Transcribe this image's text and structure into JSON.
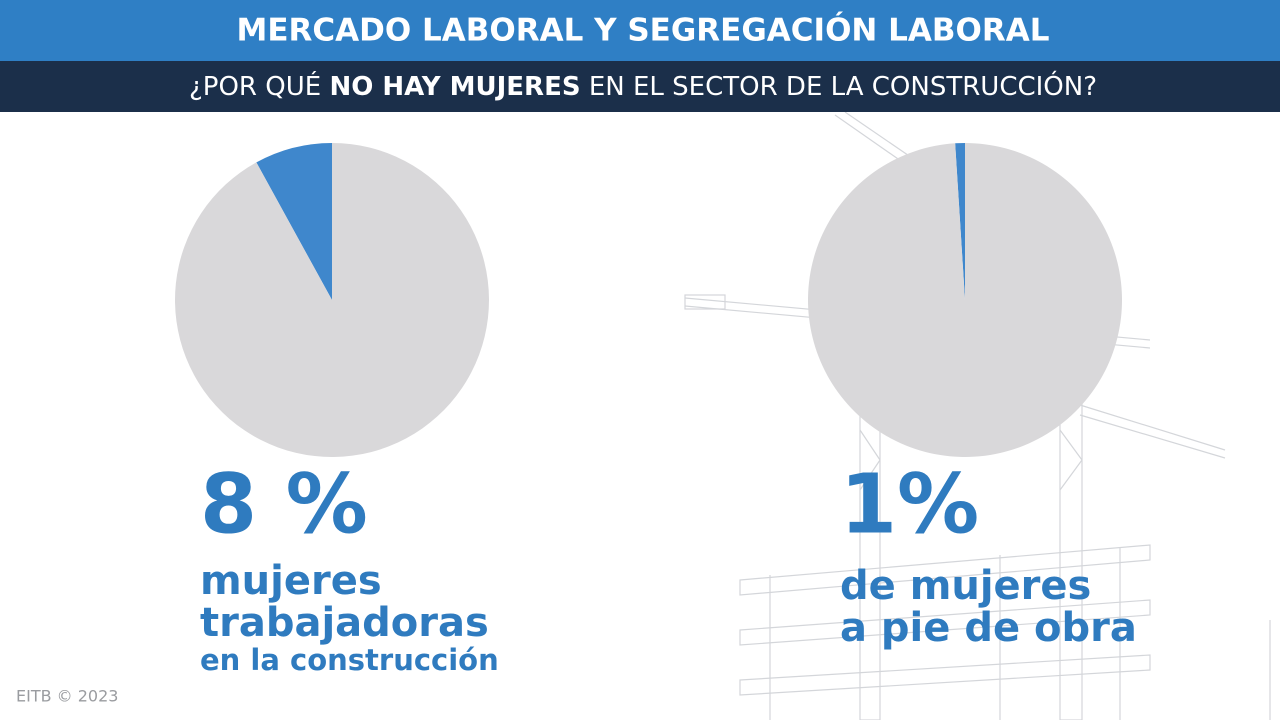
{
  "header": {
    "title": "MERCADO LABORAL Y SEGREGACIÓN LABORAL",
    "subtitle_parts": [
      "¿POR QUÉ ",
      "NO HAY MUJERES",
      " EN EL SECTOR DE LA CONSTRUCCIÓN?"
    ]
  },
  "chart_data": [
    {
      "type": "pie",
      "values": [
        8,
        92
      ],
      "value_labels": [
        "8 %",
        null
      ],
      "colors": [
        "#3f87cc",
        "#d9d8da"
      ],
      "caption": [
        "mujeres",
        "trabajadoras",
        "en la construcción"
      ]
    },
    {
      "type": "pie",
      "values": [
        1,
        99
      ],
      "value_labels": [
        "1%",
        null
      ],
      "colors": [
        "#3f87cc",
        "#d9d8da"
      ],
      "caption": [
        "de mujeres",
        "a pie de obra"
      ]
    }
  ],
  "footer": "EITB © 2023"
}
